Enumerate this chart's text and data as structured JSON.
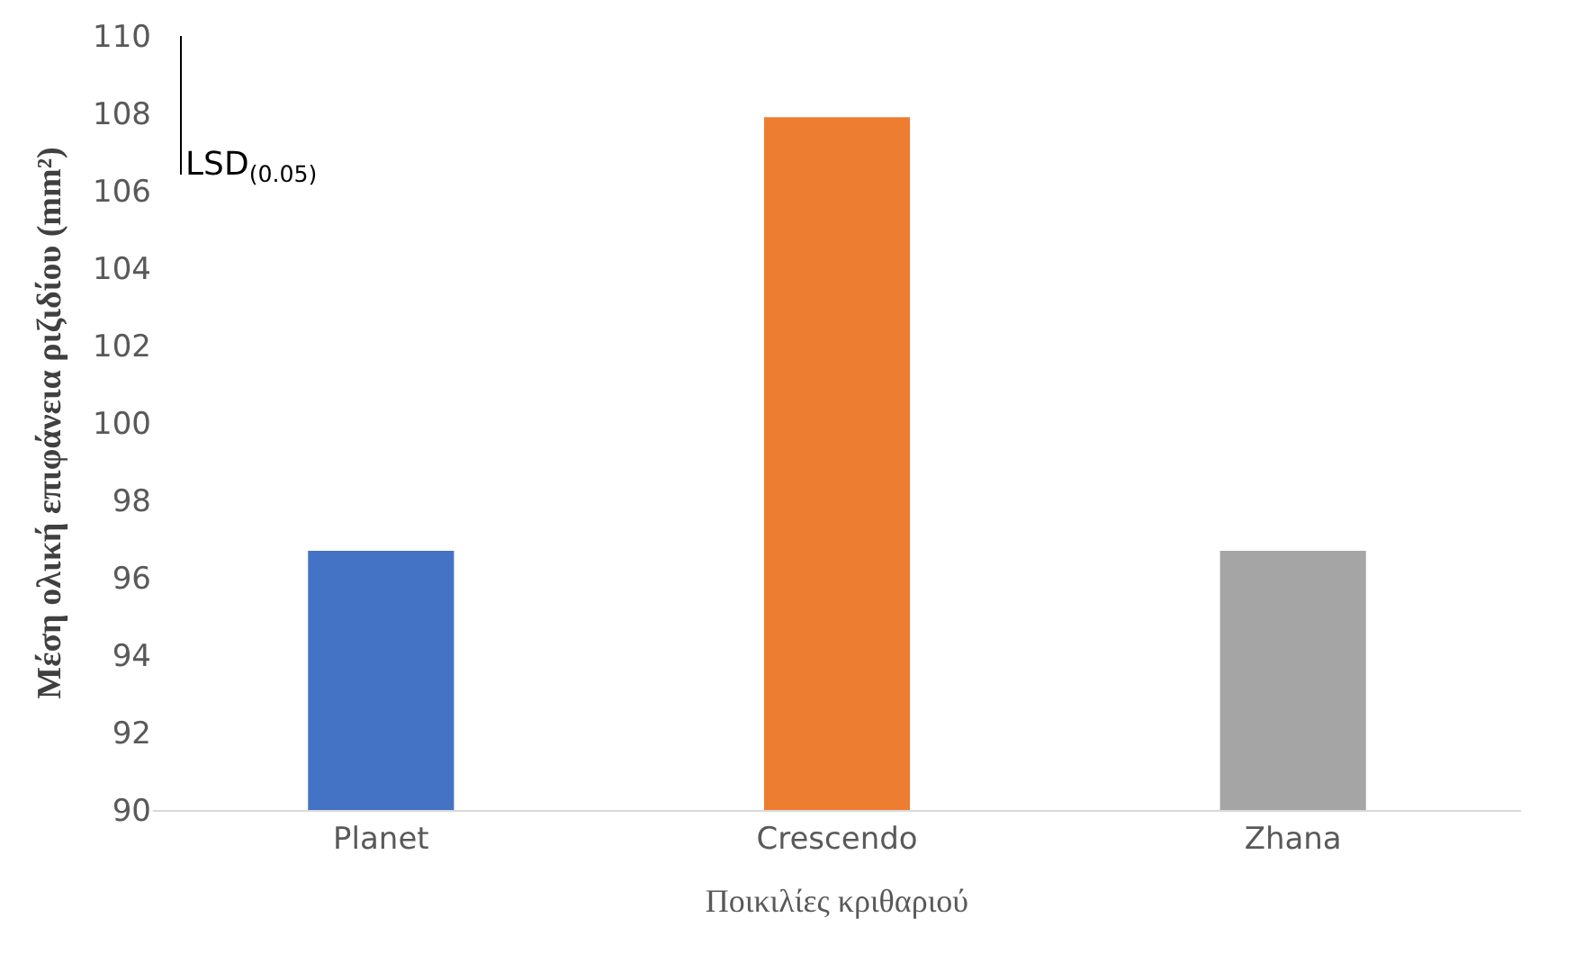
{
  "chart_data": {
    "type": "bar",
    "xlabel": "Ποικιλίες κριθαριού",
    "ylabel": "Μέση ολική επιφάνεια ριζιδίου (mm²)",
    "categories": [
      "Planet",
      "Crescendo",
      "Zhana"
    ],
    "values": [
      96.7,
      107.9,
      96.7
    ],
    "colors": [
      "#4472c4",
      "#ed7d31",
      "#a5a5a5"
    ],
    "annotations": [
      "LSD$_{(0.05)}$"
    ],
    "ylim": [
      90,
      110
    ],
    "yticks": [
      90,
      92,
      94,
      96,
      98,
      100,
      102,
      104,
      106,
      108,
      110
    ],
    "grid": false
  }
}
